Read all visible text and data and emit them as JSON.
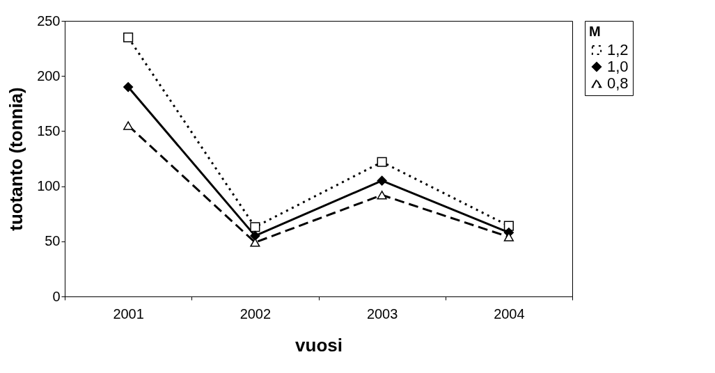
{
  "chart_data": {
    "type": "line",
    "xlabel": "vuosi",
    "ylabel": "tuotanto (tonnia)",
    "legend_title": "M",
    "legend": "right",
    "grid": false,
    "categories": [
      "2001",
      "2002",
      "2003",
      "2004"
    ],
    "ylim": [
      0,
      250
    ],
    "yticks": [
      0,
      50,
      100,
      150,
      200,
      250
    ],
    "series": [
      {
        "name": "1,2",
        "color": "#000000",
        "marker": "square",
        "line_style": "dotted",
        "values": [
          235,
          63,
          122,
          64
        ]
      },
      {
        "name": "1,0",
        "color": "#000000",
        "marker": "diamond",
        "line_style": "solid",
        "values": [
          190,
          55,
          105,
          58
        ]
      },
      {
        "name": "0,8",
        "color": "#000000",
        "marker": "triangle",
        "line_style": "dashed",
        "values": [
          155,
          49,
          92,
          54
        ]
      }
    ]
  }
}
